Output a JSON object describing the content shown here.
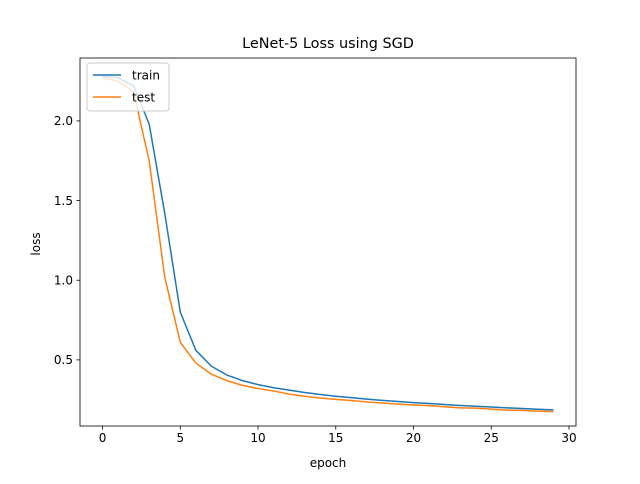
{
  "chart_data": {
    "type": "line",
    "title": "LeNet-5 Loss using SGD",
    "xlabel": "epoch",
    "ylabel": "loss",
    "xlim": [
      -1.45,
      30.45
    ],
    "ylim": [
      0.085,
      2.395
    ],
    "xticks": [
      0,
      5,
      10,
      15,
      20,
      25,
      30
    ],
    "xtick_labels": [
      "0",
      "5",
      "10",
      "15",
      "20",
      "25",
      "30"
    ],
    "yticks": [
      0.5,
      1.0,
      1.5,
      2.0
    ],
    "ytick_labels": [
      "0.5",
      "1.0",
      "1.5",
      "2.0"
    ],
    "grid": false,
    "legend_position": "top-left",
    "x": [
      0,
      1,
      2,
      3,
      4,
      5,
      6,
      7,
      8,
      9,
      10,
      11,
      12,
      13,
      14,
      15,
      16,
      17,
      18,
      19,
      20,
      21,
      22,
      23,
      24,
      25,
      26,
      27,
      28,
      29
    ],
    "series": [
      {
        "name": "train",
        "color": "#1f77b4",
        "values": [
          2.28,
          2.27,
          2.22,
          1.98,
          1.42,
          0.8,
          0.56,
          0.46,
          0.405,
          0.37,
          0.345,
          0.325,
          0.31,
          0.295,
          0.283,
          0.272,
          0.263,
          0.254,
          0.246,
          0.239,
          0.232,
          0.226,
          0.22,
          0.214,
          0.209,
          0.204,
          0.199,
          0.195,
          0.19,
          0.186
        ]
      },
      {
        "name": "test",
        "color": "#ff7f0e",
        "values": [
          2.27,
          2.25,
          2.18,
          1.75,
          1.02,
          0.61,
          0.48,
          0.41,
          0.37,
          0.34,
          0.32,
          0.305,
          0.285,
          0.272,
          0.261,
          0.252,
          0.245,
          0.236,
          0.229,
          0.222,
          0.217,
          0.213,
          0.206,
          0.199,
          0.197,
          0.191,
          0.185,
          0.183,
          0.178,
          0.175
        ]
      }
    ]
  }
}
